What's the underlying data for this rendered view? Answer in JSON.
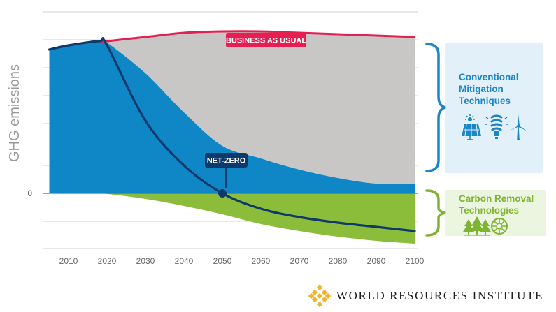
{
  "chart_data": {
    "type": "area",
    "title": "",
    "xlabel": "",
    "ylabel": "GHG emissions",
    "x_ticks": [
      2010,
      2020,
      2030,
      2040,
      2050,
      2060,
      2070,
      2080,
      2090,
      2100
    ],
    "y_ticks": [
      "0"
    ],
    "xlim": [
      2005,
      2101
    ],
    "ylim": [
      -2.1,
      5.9
    ],
    "grid": true,
    "x": [
      2005,
      2010,
      2018,
      2020,
      2030,
      2040,
      2050,
      2060,
      2070,
      2080,
      2090,
      2100
    ],
    "series": [
      {
        "name": "BUSINESS AS USUAL",
        "values": [
          5.15,
          5.3,
          5.45,
          5.45,
          5.6,
          5.75,
          5.8,
          5.8,
          5.75,
          5.7,
          5.65,
          5.6
        ]
      },
      {
        "name": "Conventional Mitigation Techniques",
        "values": [
          5.15,
          5.3,
          5.45,
          5.4,
          4.3,
          2.9,
          1.7,
          1.25,
          0.85,
          0.55,
          0.35,
          0.35
        ]
      },
      {
        "name": "Carbon Removal Technologies",
        "values": [
          0,
          0,
          0,
          -0.02,
          -0.2,
          -0.45,
          -0.75,
          -1.1,
          -1.35,
          -1.55,
          -1.7,
          -1.8
        ]
      },
      {
        "name": "NET-ZERO",
        "values": [
          5.15,
          5.3,
          5.45,
          5.3,
          2.6,
          1.0,
          0.0,
          -0.55,
          -0.85,
          -1.05,
          -1.2,
          -1.35
        ]
      }
    ],
    "annotations": [
      "BUSINESS AS USUAL",
      "NET-ZERO"
    ],
    "colors": {
      "bau": "#e51f51",
      "gray_area": "#c8c7c5",
      "blue_area": "#0f86c5",
      "green_area": "#8bbd3a",
      "netzero_line": "#0e3a6b",
      "label_bg_netzero": "#0e3a6b",
      "grid": "#d2d2d2"
    }
  },
  "panels": {
    "conventional": {
      "title_lines": [
        "Conventional",
        "Mitigation",
        "Techniques"
      ],
      "title_color": "#1a86c7",
      "bg": "#e2f0fa",
      "bracket_color": "#1a86c7",
      "icons": [
        "solar-panel-icon",
        "light-bulb-icon",
        "wind-turbine-icon"
      ]
    },
    "carbon_removal": {
      "title_lines": [
        "Carbon Removal",
        "Technologies"
      ],
      "title_color": "#7fb432",
      "bg": "#ecf5e0",
      "bracket_color": "#7fb432",
      "icons": [
        "trees-icon",
        "sun-disc-icon"
      ]
    }
  },
  "footer": {
    "org_name": "WORLD RESOURCES INSTITUTE",
    "logo_color": "#f2b32c"
  }
}
